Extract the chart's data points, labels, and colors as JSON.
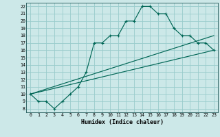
{
  "xlabel": "Humidex (Indice chaleur)",
  "bg_color": "#cce8e8",
  "grid_color": "#99cccc",
  "line_color": "#006655",
  "xlim": [
    -0.5,
    23.5
  ],
  "ylim": [
    7.5,
    22.5
  ],
  "xtick_labels": [
    "0",
    "1",
    "2",
    "3",
    "4",
    "5",
    "6",
    "7",
    "8",
    "9",
    "10",
    "11",
    "12",
    "13",
    "14",
    "15",
    "16",
    "17",
    "18",
    "19",
    "20",
    "21",
    "22",
    "23"
  ],
  "ytick_labels": [
    "8",
    "9",
    "10",
    "11",
    "12",
    "13",
    "14",
    "15",
    "16",
    "17",
    "18",
    "19",
    "20",
    "21",
    "22"
  ],
  "line1_x": [
    0,
    1,
    2,
    3,
    4,
    5,
    6,
    7,
    8,
    9,
    10,
    11,
    12,
    13,
    14,
    15,
    16,
    17,
    18,
    19,
    20,
    21,
    22,
    23
  ],
  "line1_y": [
    10,
    9,
    9,
    8,
    9,
    10,
    11,
    13,
    17,
    17,
    18,
    18,
    20,
    20,
    22,
    22,
    21,
    21,
    19,
    18,
    18,
    17,
    17,
    16
  ],
  "line2_x": [
    0,
    23
  ],
  "line2_y": [
    10,
    16
  ],
  "line3_x": [
    0,
    23
  ],
  "line3_y": [
    10,
    18
  ]
}
